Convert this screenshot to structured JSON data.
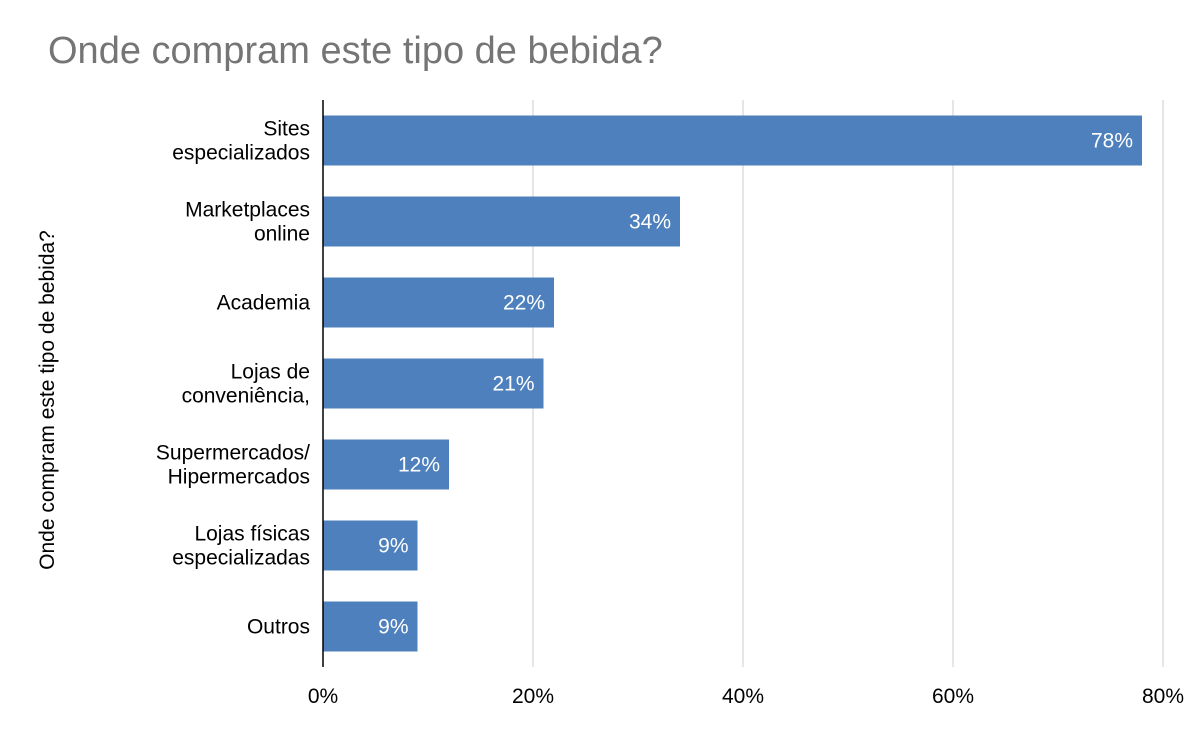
{
  "chart_data": {
    "type": "bar",
    "orientation": "horizontal",
    "title": "Onde compram este tipo de bebida?",
    "ylabel": "Onde compram este tipo de bebida?",
    "xlabel": "",
    "categories": [
      [
        "Sites",
        "especializados"
      ],
      [
        "Marketplaces",
        "online"
      ],
      [
        "Academia"
      ],
      [
        "Lojas de",
        "conveniência,"
      ],
      [
        "Supermercados/",
        "Hipermercados"
      ],
      [
        "Lojas físicas",
        "especializadas"
      ],
      [
        "Outros"
      ]
    ],
    "values": [
      78,
      34,
      22,
      21,
      12,
      9,
      9
    ],
    "value_labels": [
      "78%",
      "34%",
      "22%",
      "21%",
      "12%",
      "9%",
      "9%"
    ],
    "xlim": [
      0,
      80
    ],
    "xticks": [
      0,
      20,
      40,
      60,
      80
    ],
    "xtick_labels": [
      "0%",
      "20%",
      "40%",
      "60%",
      "80%"
    ],
    "grid": true,
    "colors": {
      "bar": "#4e80bd",
      "grid": "#cccccc",
      "axis": "#000000",
      "title": "#757575"
    }
  }
}
